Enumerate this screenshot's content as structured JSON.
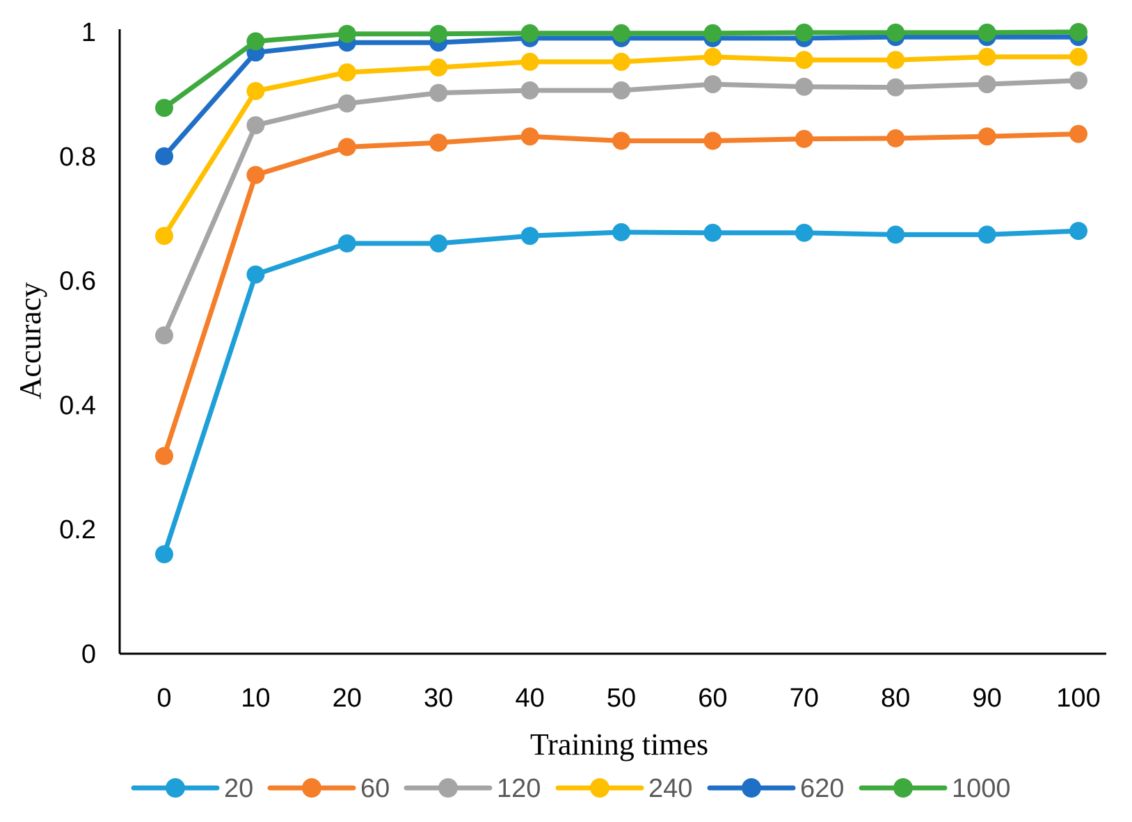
{
  "chart_data": {
    "type": "line",
    "title": "",
    "xlabel": "Training times",
    "ylabel": "Accuracy",
    "x": [
      0,
      10,
      20,
      30,
      40,
      50,
      60,
      70,
      80,
      90,
      100
    ],
    "x_tick_labels": [
      "0",
      "10",
      "20",
      "30",
      "40",
      "50",
      "60",
      "70",
      "80",
      "90",
      "100"
    ],
    "y_ticks": [
      0,
      0.2,
      0.4,
      0.6,
      0.8,
      1
    ],
    "y_tick_labels": [
      "0",
      "0.2",
      "0.4",
      "0.6",
      "0.8",
      "1"
    ],
    "ylim": [
      0,
      1
    ],
    "grid": false,
    "legend_position": "bottom",
    "series": [
      {
        "name": "20",
        "color": "#1f9fd8",
        "values": [
          0.16,
          0.61,
          0.66,
          0.66,
          0.672,
          0.678,
          0.677,
          0.677,
          0.674,
          0.674,
          0.68
        ]
      },
      {
        "name": "60",
        "color": "#f47e29",
        "values": [
          0.318,
          0.77,
          0.815,
          0.822,
          0.832,
          0.825,
          0.825,
          0.828,
          0.829,
          0.832,
          0.836
        ]
      },
      {
        "name": "120",
        "color": "#a5a5a5",
        "values": [
          0.512,
          0.85,
          0.885,
          0.902,
          0.906,
          0.906,
          0.916,
          0.912,
          0.911,
          0.916,
          0.922
        ]
      },
      {
        "name": "240",
        "color": "#ffc000",
        "values": [
          0.672,
          0.905,
          0.935,
          0.943,
          0.952,
          0.952,
          0.96,
          0.955,
          0.955,
          0.96,
          0.96
        ]
      },
      {
        "name": "620",
        "color": "#1f6fc6",
        "values": [
          0.8,
          0.967,
          0.983,
          0.983,
          0.99,
          0.99,
          0.99,
          0.99,
          0.992,
          0.992,
          0.992
        ]
      },
      {
        "name": "1000",
        "color": "#3eaa3e",
        "values": [
          0.878,
          0.985,
          0.997,
          0.997,
          0.998,
          0.998,
          0.998,
          0.999,
          0.999,
          0.999,
          1.0
        ]
      }
    ]
  }
}
